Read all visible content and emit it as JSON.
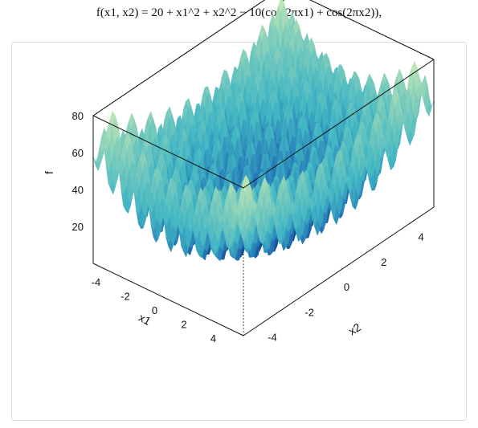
{
  "formula": {
    "lhs": "f(x",
    "rhs": "= 20 + x₁² + x₂² − 10(cos(2πx₁) + cos(2πx₂)),"
  },
  "formula_text": "f(x1, x2) = 20 + x1^2 + x2^2 − 10(cos(2πx1) + cos(2πx2)),",
  "chart_data": {
    "type": "surface",
    "function": "rastrigin",
    "x1_range": [
      -5.12,
      5.12
    ],
    "x2_range": [
      -5.12,
      5.12
    ],
    "z_range": [
      0,
      80
    ],
    "axes": {
      "x1": {
        "label": "x1",
        "ticks": [
          "-4",
          "-2",
          "0",
          "2",
          "4"
        ]
      },
      "x2": {
        "label": "x2",
        "ticks": [
          "-4",
          "-2",
          "0",
          "2",
          "4"
        ]
      },
      "z": {
        "label": "f",
        "ticks": [
          "20",
          "40",
          "60",
          "80"
        ]
      }
    },
    "colorscale": [
      "#08306b",
      "#2171b5",
      "#41b6c4",
      "#7fcdbb",
      "#c7e9b4"
    ],
    "grid": false
  }
}
